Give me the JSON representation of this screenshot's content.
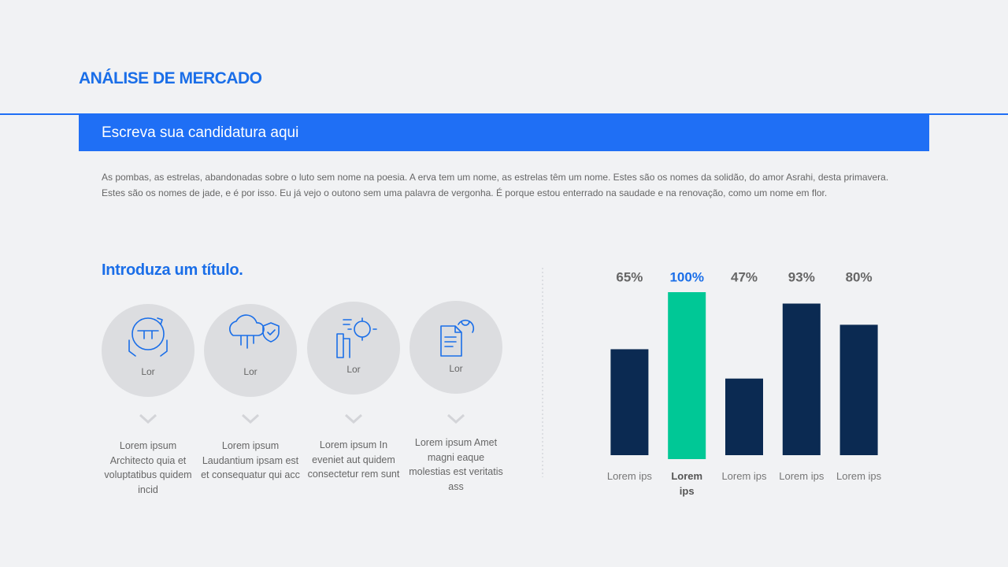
{
  "header": {
    "title": "ANÁLISE DE MERCADO",
    "banner": "Escreva sua candidatura aqui"
  },
  "intro": {
    "lines": [
      "As pombas, as estrelas, abandonadas sobre o luto sem nome na poesia. A erva tem um nome, as estrelas têm um nome. Estes são os nomes da solidão, do amor Asrahi, desta primavera.",
      "Estes são os nomes de jade, e é por isso. Eu já vejo o outono sem uma palavra de vergonha. É porque estou enterrado na saudade e na renovação, como um nome em flor."
    ]
  },
  "features": {
    "title": "Introduza um título.",
    "items": [
      {
        "label": "Lor",
        "text": "Lorem ipsum Architecto quia et voluptatibus quidem incid"
      },
      {
        "label": "Lor",
        "text": "Lorem ipsum Laudantium ipsam est et consequatur qui acc"
      },
      {
        "label": "Lor",
        "text": "Lorem ipsum In eveniet aut quidem consectetur rem sunt"
      },
      {
        "label": "Lor",
        "text": "Lorem ipsum Amet magni eaque molestias est veritatis ass"
      }
    ]
  },
  "chart_data": {
    "type": "bar",
    "categories": [
      "Lorem ips",
      "Lorem ips",
      "Lorem ips",
      "Lorem ips",
      "Lorem ips"
    ],
    "values": [
      65,
      100,
      47,
      93,
      80
    ],
    "value_labels": [
      "65%",
      "100%",
      "47%",
      "93%",
      "80%"
    ],
    "color": "#0b2a52",
    "colors": [
      "#0b2a52",
      "#00c896",
      "#0b2a52",
      "#0b2a52",
      "#0b2a52"
    ],
    "ylim": [
      0,
      100
    ]
  }
}
